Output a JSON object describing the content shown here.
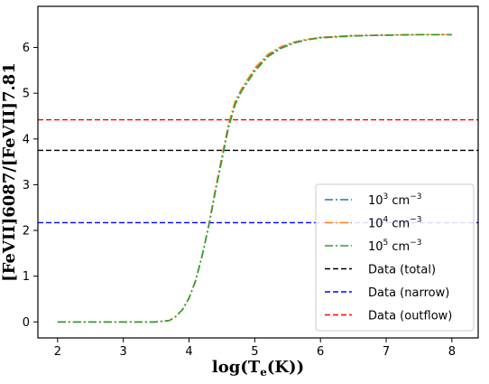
{
  "chart_data": {
    "type": "line",
    "xlabel": "log(T_e(K))",
    "ylabel": "[FeVII]6087/[FeVII]7.81",
    "xlim": [
      1.7,
      8.4
    ],
    "ylim": [
      -0.35,
      6.9
    ],
    "x_ticks": [
      2,
      3,
      4,
      5,
      6,
      7,
      8
    ],
    "y_ticks": [
      0,
      1,
      2,
      3,
      4,
      5,
      6
    ],
    "grid": false,
    "legend_placement": "lower-right",
    "series": [
      {
        "name": "10^3 cm^-3",
        "label_base": "10",
        "label_exp": "3",
        "label_unit": " cm",
        "label_unit_exp": "−3",
        "color": "#1f77b4",
        "style": "dash-dot",
        "x": [
          2.0,
          3.0,
          3.5,
          3.7,
          3.8,
          3.9,
          4.0,
          4.1,
          4.2,
          4.3,
          4.4,
          4.5,
          4.6,
          4.7,
          4.8,
          5.0,
          5.2,
          5.4,
          5.6,
          5.8,
          6.0,
          6.5,
          7.0,
          7.5,
          8.0
        ],
        "y": [
          0.0,
          0.0,
          0.0,
          0.03,
          0.12,
          0.27,
          0.52,
          0.9,
          1.45,
          2.1,
          2.85,
          3.55,
          4.25,
          4.75,
          5.05,
          5.5,
          5.82,
          6.0,
          6.1,
          6.17,
          6.22,
          6.26,
          6.27,
          6.28,
          6.28
        ]
      },
      {
        "name": "10^4 cm^-3",
        "label_base": "10",
        "label_exp": "4",
        "label_unit": " cm",
        "label_unit_exp": "−3",
        "color": "#ff7f0e",
        "style": "dash-dot",
        "x": [
          2.0,
          3.0,
          3.5,
          3.7,
          3.8,
          3.9,
          4.0,
          4.1,
          4.2,
          4.3,
          4.4,
          4.5,
          4.6,
          4.7,
          4.8,
          5.0,
          5.2,
          5.4,
          5.6,
          5.8,
          6.0,
          6.5,
          7.0,
          7.5,
          8.0
        ],
        "y": [
          0.0,
          0.0,
          0.0,
          0.03,
          0.12,
          0.27,
          0.52,
          0.9,
          1.45,
          2.12,
          2.9,
          3.62,
          4.32,
          4.82,
          5.1,
          5.55,
          5.85,
          6.02,
          6.12,
          6.18,
          6.22,
          6.26,
          6.27,
          6.28,
          6.28
        ]
      },
      {
        "name": "10^5 cm^-3",
        "label_base": "10",
        "label_exp": "5",
        "label_unit": " cm",
        "label_unit_exp": "−3",
        "color": "#2ca02c",
        "style": "dash-dot",
        "x": [
          2.0,
          3.0,
          3.5,
          3.7,
          3.8,
          3.9,
          4.0,
          4.1,
          4.2,
          4.3,
          4.4,
          4.5,
          4.6,
          4.7,
          4.8,
          5.0,
          5.2,
          5.4,
          5.6,
          5.8,
          6.0,
          6.5,
          7.0,
          7.5,
          8.0
        ],
        "y": [
          0.0,
          0.0,
          0.0,
          0.03,
          0.12,
          0.27,
          0.52,
          0.9,
          1.45,
          2.1,
          2.85,
          3.55,
          4.25,
          4.75,
          5.05,
          5.48,
          5.8,
          5.98,
          6.1,
          6.17,
          6.21,
          6.25,
          6.27,
          6.28,
          6.28
        ]
      }
    ],
    "hlines": [
      {
        "name": "Data (total)",
        "y": 3.75,
        "color": "#000000",
        "style": "dashed"
      },
      {
        "name": "Data (narrow)",
        "y": 2.17,
        "color": "#0000ff",
        "style": "dashed"
      },
      {
        "name": "Data (outflow)",
        "y": 4.42,
        "color": "#ff0000",
        "style": "dashed"
      }
    ]
  }
}
